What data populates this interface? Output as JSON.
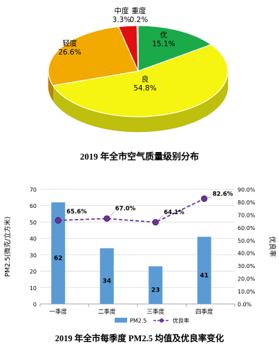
{
  "chart_data": [
    {
      "type": "pie",
      "title": "2019 年全市空气质量级别分布",
      "slices": [
        {
          "name": "优",
          "value": 15.1,
          "label": "15.1%",
          "color": "#1aaa4a"
        },
        {
          "name": "良",
          "value": 54.8,
          "label": "54.8%",
          "color": "#f5f511"
        },
        {
          "name": "轻度",
          "value": 26.6,
          "label": "26.6%",
          "color": "#f2a900"
        },
        {
          "name": "中度",
          "value": 3.3,
          "label": "3.3%",
          "color": "#e01010"
        },
        {
          "name": "重度",
          "value": 0.2,
          "label": "0.2%",
          "color": "#9a1a3a"
        }
      ]
    },
    {
      "type": "bar",
      "title": "2019 年全市每季度 PM2.5 均值及优良率变化",
      "categories": [
        "一季度",
        "二季度",
        "三季度",
        "四季度"
      ],
      "series": [
        {
          "name": "PM2.5",
          "type": "bar",
          "axis": "left",
          "values": [
            62,
            34,
            23,
            41
          ],
          "labels": [
            "62",
            "34",
            "23",
            "41"
          ],
          "color": "#5b9bd5"
        },
        {
          "name": "优良率",
          "type": "line",
          "axis": "right",
          "values": [
            65.6,
            67.0,
            64.1,
            82.6
          ],
          "labels": [
            "65.6%",
            "67.0%",
            "64.1%",
            "82.6%"
          ],
          "color": "#7030a0"
        }
      ],
      "ylabel": "PM2.5(微克/立方米)",
      "y2label": "优良率",
      "ylim": [
        0,
        70
      ],
      "y2lim": [
        0,
        90
      ],
      "yticks": [
        "0",
        "10",
        "20",
        "30",
        "40",
        "50",
        "60",
        "70"
      ],
      "y2ticks": [
        "0.0%",
        "10.0%",
        "20.0%",
        "30.0%",
        "40.0%",
        "50.0%",
        "60.0%",
        "70.0%",
        "80.0%",
        "90.0%"
      ],
      "legend": {
        "position": "bottom",
        "items": [
          "PM2.5",
          "优良率"
        ]
      },
      "grid": true
    }
  ]
}
